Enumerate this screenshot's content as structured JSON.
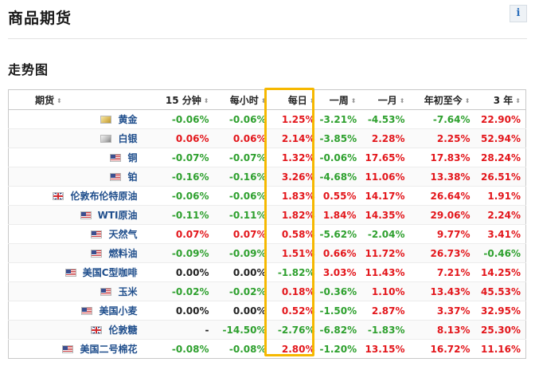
{
  "page": {
    "title": "商品期货",
    "info_label": "i"
  },
  "section": {
    "title": "走势图"
  },
  "colors": {
    "positive": "#e3161b",
    "negative": "#2ea02e",
    "link": "#1f4e8c",
    "highlight": "#f6b800"
  },
  "table": {
    "headers": [
      "期货",
      "15 分钟",
      "每小时",
      "每日",
      "一周",
      "一月",
      "年初至今",
      "3 年"
    ],
    "sort_icon": "⬍",
    "highlighted_column": "每日",
    "rows": [
      {
        "flag": "gold",
        "name": "黄金",
        "values": [
          "-0.06%",
          "-0.06%",
          "1.25%",
          "-3.21%",
          "-4.53%",
          "-7.64%",
          "22.90%"
        ]
      },
      {
        "flag": "silver",
        "name": "白银",
        "values": [
          "0.06%",
          "0.06%",
          "2.14%",
          "-3.85%",
          "2.28%",
          "2.25%",
          "52.94%"
        ]
      },
      {
        "flag": "us",
        "name": "铜",
        "values": [
          "-0.07%",
          "-0.07%",
          "1.32%",
          "-0.06%",
          "17.65%",
          "17.83%",
          "28.24%"
        ]
      },
      {
        "flag": "us",
        "name": "铂",
        "values": [
          "-0.16%",
          "-0.16%",
          "3.26%",
          "-4.68%",
          "11.06%",
          "13.38%",
          "26.51%"
        ]
      },
      {
        "flag": "uk",
        "name": "伦敦布伦特原油",
        "values": [
          "-0.06%",
          "-0.06%",
          "1.83%",
          "0.55%",
          "14.17%",
          "26.64%",
          "1.91%"
        ]
      },
      {
        "flag": "us",
        "name": "WTI原油",
        "values": [
          "-0.11%",
          "-0.11%",
          "1.82%",
          "1.84%",
          "14.35%",
          "29.06%",
          "2.24%"
        ]
      },
      {
        "flag": "us",
        "name": "天然气",
        "values": [
          "0.07%",
          "0.07%",
          "0.58%",
          "-5.62%",
          "-2.04%",
          "9.77%",
          "3.41%"
        ]
      },
      {
        "flag": "us",
        "name": "燃料油",
        "values": [
          "-0.09%",
          "-0.09%",
          "1.51%",
          "0.66%",
          "11.72%",
          "26.73%",
          "-0.46%"
        ]
      },
      {
        "flag": "us",
        "name": "美国C型咖啡",
        "values": [
          "0.00%",
          "0.00%",
          "-1.82%",
          "3.03%",
          "11.43%",
          "7.21%",
          "14.25%"
        ]
      },
      {
        "flag": "us",
        "name": "玉米",
        "values": [
          "-0.02%",
          "-0.02%",
          "0.18%",
          "-0.36%",
          "1.10%",
          "13.43%",
          "45.53%"
        ]
      },
      {
        "flag": "us",
        "name": "美国小麦",
        "values": [
          "0.00%",
          "0.00%",
          "0.52%",
          "-1.50%",
          "2.87%",
          "3.37%",
          "32.95%"
        ]
      },
      {
        "flag": "uk",
        "name": "伦敦糖",
        "values": [
          "-",
          "-14.50%",
          "-2.76%",
          "-6.82%",
          "-1.83%",
          "8.13%",
          "25.30%"
        ]
      },
      {
        "flag": "us",
        "name": "美国二号棉花",
        "values": [
          "-0.08%",
          "-0.08%",
          "2.80%",
          "-1.20%",
          "13.15%",
          "16.72%",
          "11.16%"
        ]
      }
    ]
  }
}
